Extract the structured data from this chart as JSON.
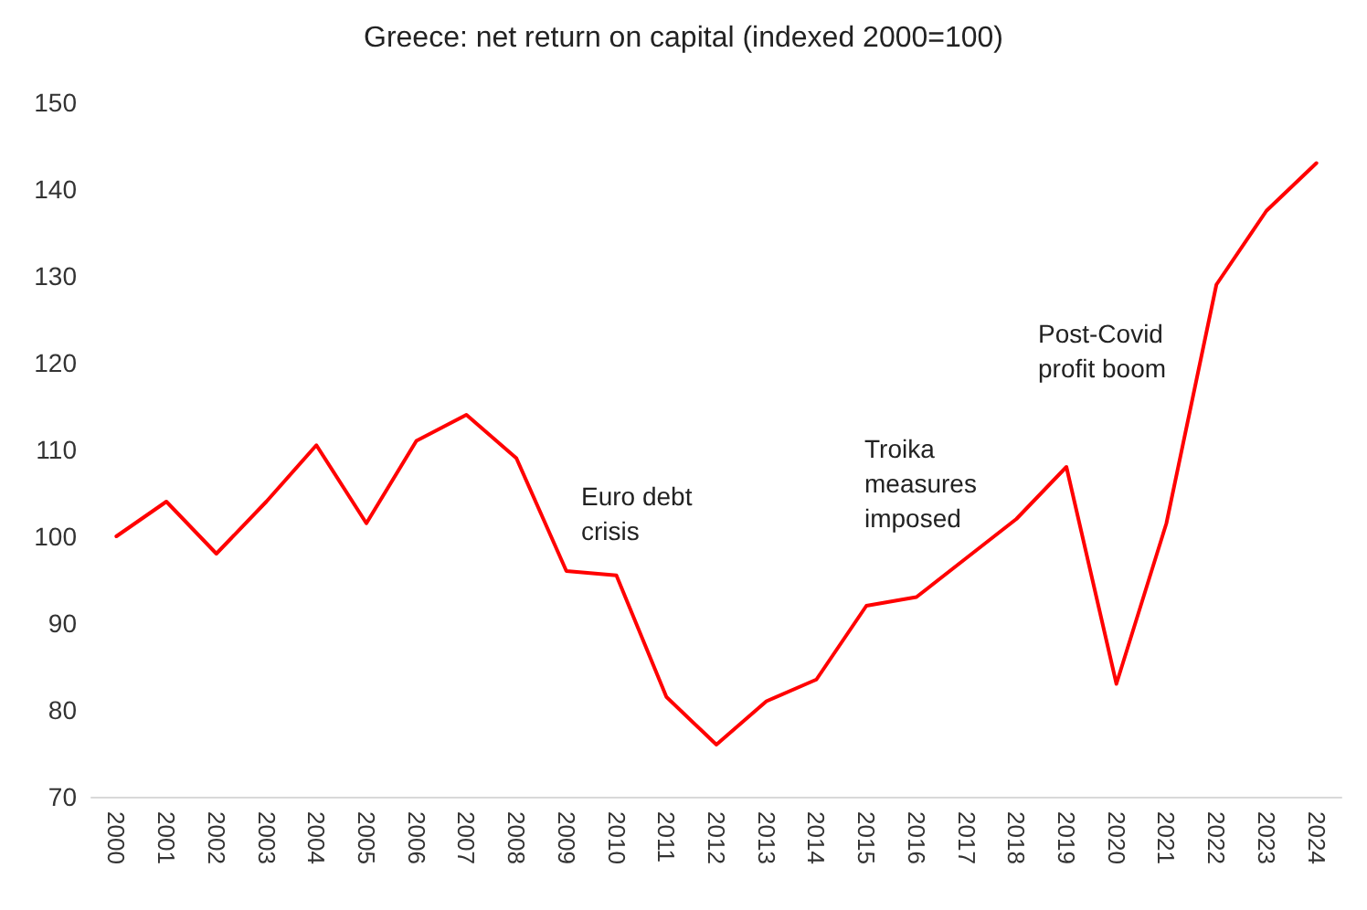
{
  "chart_data": {
    "type": "line",
    "title": "Greece: net return on capital (indexed 2000=100)",
    "categories": [
      "2000",
      "2001",
      "2002",
      "2003",
      "2004",
      "2005",
      "2006",
      "2007",
      "2008",
      "2009",
      "2010",
      "2011",
      "2012",
      "2013",
      "2014",
      "2015",
      "2016",
      "2017",
      "2018",
      "2019",
      "2020",
      "2021",
      "2022",
      "2023",
      "2024"
    ],
    "series": [
      {
        "color": "#ff0000",
        "values": [
          100,
          104,
          98,
          104,
          110.5,
          101.5,
          111,
          114,
          109,
          96,
          95.5,
          81.5,
          76,
          81,
          83.5,
          92,
          93,
          97.5,
          102,
          108,
          83,
          101.5,
          129,
          137.5,
          143
        ]
      }
    ],
    "ylim": [
      70,
      150
    ],
    "yticks": [
      70,
      80,
      90,
      100,
      110,
      120,
      130,
      140,
      150
    ],
    "grid": false,
    "marker": "none",
    "line_style": "solid",
    "annotations": [
      "Euro debt\ncrisis",
      "Troika\nmeasures\nimposed",
      "Post-Covid\nprofit boom"
    ]
  }
}
